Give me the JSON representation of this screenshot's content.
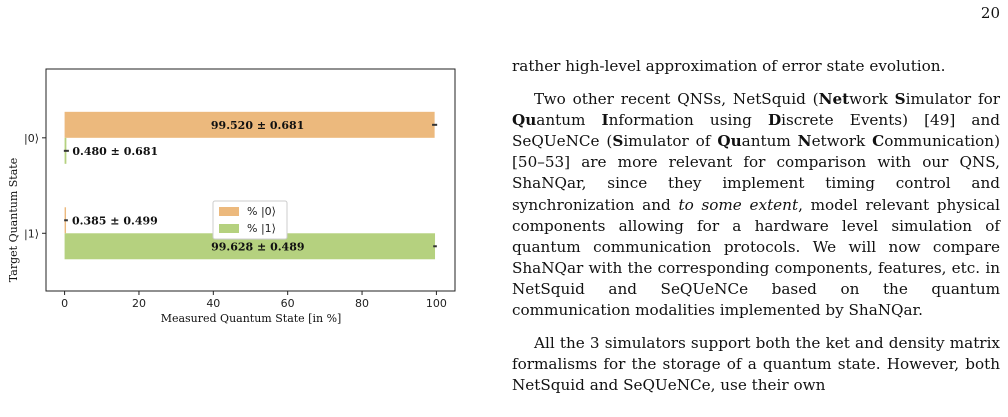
{
  "page": {
    "number": "20"
  },
  "chart_data": {
    "type": "bar",
    "orientation": "horizontal",
    "categories": [
      "|0⟩",
      "|1⟩"
    ],
    "series": [
      {
        "name": "% |0⟩",
        "color": "#ecb97d",
        "values": [
          99.52,
          0.385
        ],
        "errors": [
          0.681,
          0.499
        ],
        "labels": [
          "99.520 ± 0.681",
          "0.385 ± 0.499"
        ]
      },
      {
        "name": "% |1⟩",
        "color": "#b5d17f",
        "values": [
          0.48,
          99.628
        ],
        "errors": [
          0.681,
          0.489
        ],
        "labels": [
          "0.480 ± 0.681",
          "99.628 ± 0.489"
        ]
      }
    ],
    "xlabel": "Measured Quantum State [in %]",
    "ylabel": "Target Quantum State",
    "xlim": [
      -5,
      105
    ],
    "xticks": [
      "0",
      "20",
      "40",
      "60",
      "80",
      "100"
    ],
    "grid": false,
    "legend": "center"
  },
  "text": {
    "line0": "rather high-level approximation of error state evolution.",
    "para1": [
      {
        "t": "Two other recent QNSs, NetSquid ("
      },
      {
        "t": "Net",
        "b": true
      },
      {
        "t": "work "
      },
      {
        "t": "S",
        "b": true
      },
      {
        "t": "imulator for "
      },
      {
        "t": "Qu",
        "b": true
      },
      {
        "t": "antum "
      },
      {
        "t": "I",
        "b": true
      },
      {
        "t": "nformation using "
      },
      {
        "t": "D",
        "b": true
      },
      {
        "t": "iscrete Events) [49] and SeQUeNCe ("
      },
      {
        "t": "S",
        "b": true
      },
      {
        "t": "imulator of "
      },
      {
        "t": "Qu",
        "b": true
      },
      {
        "t": "antum "
      },
      {
        "t": "N",
        "b": true
      },
      {
        "t": "etwork "
      },
      {
        "t": "C",
        "b": true
      },
      {
        "t": "ommunication) [50–53] are more relevant for comparison with our QNS, ShaNQar, since they implement timing control and synchronization and "
      },
      {
        "t": "to some extent",
        "i": true
      },
      {
        "t": ", model relevant physical components allowing for a hardware level simulation of quantum communication protocols. We will now compare ShaNQar with the corresponding components, features, etc. in NetSquid and SeQUeNCe based on the quantum communication modalities implemented by ShaNQar."
      }
    ],
    "para2": "All the 3 simulators support both the ket and density matrix formalisms for the storage of a quantum state. However, both NetSquid and SeQUeNCe, use their own"
  }
}
